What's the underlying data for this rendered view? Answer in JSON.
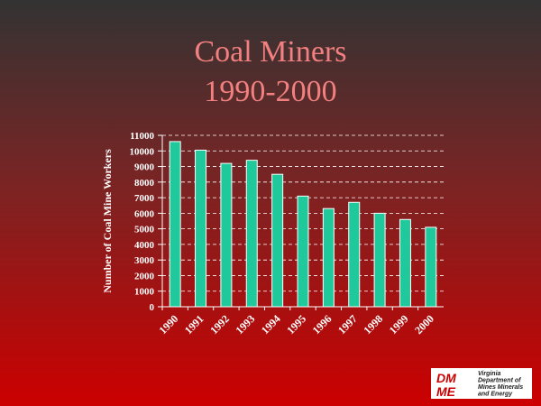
{
  "chart_data": {
    "type": "bar",
    "title": "Coal Miners",
    "subtitle": "1990-2000",
    "y_label": "Number of Coal Mine Workers",
    "categories": [
      "1990",
      "1991",
      "1992",
      "1993",
      "1994",
      "1995",
      "1996",
      "1997",
      "1998",
      "1999",
      "2000"
    ],
    "values": [
      10600,
      10050,
      9200,
      9400,
      8500,
      7100,
      6300,
      6700,
      6000,
      5600,
      5100
    ],
    "color": "#1fc99b",
    "ylim": [
      0,
      11000
    ],
    "yticks": [
      0,
      1000,
      2000,
      3000,
      4000,
      5000,
      6000,
      7000,
      8000,
      9000,
      10000,
      11000
    ],
    "grid": true,
    "logo": {
      "mark": [
        "DM",
        "ME"
      ],
      "lines": [
        "Virginia",
        "Department of",
        "Mines Minerals",
        "and Energy"
      ]
    }
  }
}
